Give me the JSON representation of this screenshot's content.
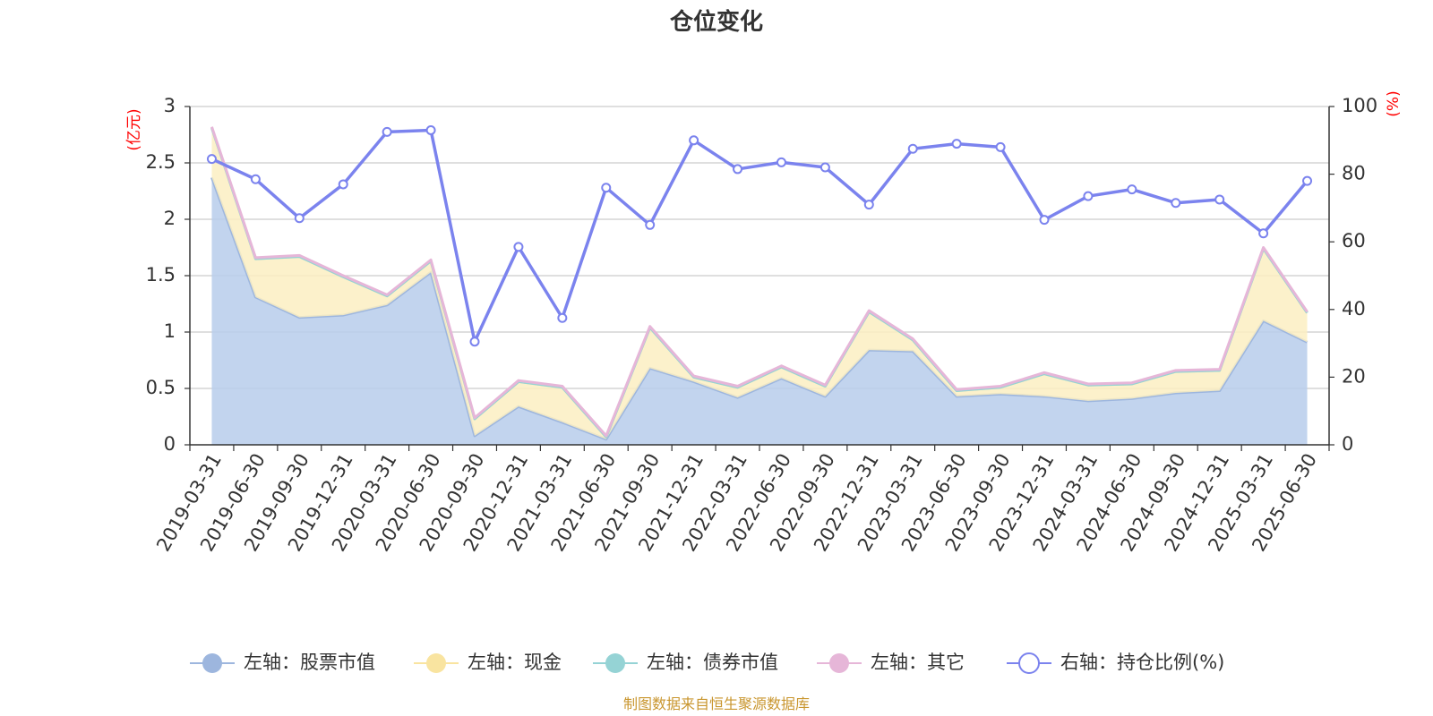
{
  "chart_data": {
    "type": "area",
    "title": "仓位变化",
    "left_unit": "(亿元)",
    "right_unit": "(%)",
    "categories": [
      "2019-03-31",
      "2019-06-30",
      "2019-09-30",
      "2019-12-31",
      "2020-03-31",
      "2020-06-30",
      "2020-09-30",
      "2020-12-31",
      "2021-03-31",
      "2021-06-30",
      "2021-09-30",
      "2021-12-31",
      "2022-03-31",
      "2022-06-30",
      "2022-09-30",
      "2022-12-31",
      "2023-03-31",
      "2023-06-30",
      "2023-09-30",
      "2023-12-31",
      "2024-03-31",
      "2024-06-30",
      "2024-09-30",
      "2024-12-31",
      "2025-03-31",
      "2025-06-30"
    ],
    "left_axis": {
      "min": 0,
      "max": 3,
      "ticks": [
        "0",
        "0.5",
        "1",
        "1.5",
        "2",
        "2.5",
        "3"
      ]
    },
    "right_axis": {
      "min": 0,
      "max": 100,
      "ticks": [
        "0",
        "20",
        "40",
        "60",
        "80",
        "100"
      ]
    },
    "grid": true,
    "legend_position": "bottom",
    "series": [
      {
        "name": "左轴：股票市值",
        "axis": "left",
        "kind": "area",
        "color": "#9db6de",
        "fill": "#b7cdeb",
        "values": [
          2.37,
          1.31,
          1.13,
          1.15,
          1.24,
          1.53,
          0.08,
          0.34,
          0.2,
          0.05,
          0.68,
          0.56,
          0.42,
          0.59,
          0.43,
          0.84,
          0.83,
          0.43,
          0.45,
          0.43,
          0.39,
          0.41,
          0.46,
          0.48,
          1.1,
          0.91
        ]
      },
      {
        "name": "左轴：现金",
        "axis": "left",
        "kind": "area",
        "color": "#f9e4a0",
        "fill": "#fbeec2",
        "values": [
          0.44,
          0.34,
          0.54,
          0.34,
          0.08,
          0.1,
          0.15,
          0.22,
          0.31,
          0.02,
          0.36,
          0.04,
          0.09,
          0.1,
          0.09,
          0.34,
          0.1,
          0.05,
          0.06,
          0.2,
          0.14,
          0.13,
          0.19,
          0.18,
          0.64,
          0.26
        ]
      },
      {
        "name": "左轴：债券市值",
        "axis": "left",
        "kind": "area",
        "color": "#95d3d5",
        "fill": "#b6e3e4",
        "values": [
          0,
          0,
          0,
          0,
          0,
          0,
          0,
          0,
          0,
          0,
          0,
          0,
          0,
          0,
          0,
          0,
          0,
          0,
          0,
          0,
          0,
          0,
          0,
          0,
          0,
          0
        ]
      },
      {
        "name": "左轴：其它",
        "axis": "left",
        "kind": "area",
        "color": "#e6b6d8",
        "fill": "#f1d5e8",
        "values": [
          0.01,
          0.01,
          0.01,
          0.01,
          0.01,
          0.01,
          0.01,
          0.01,
          0.01,
          0.01,
          0.01,
          0.01,
          0.01,
          0.01,
          0.01,
          0.01,
          0.01,
          0.01,
          0.01,
          0.01,
          0.01,
          0.01,
          0.01,
          0.01,
          0.01,
          0.01
        ]
      },
      {
        "name": "右轴：持仓比例(%)",
        "axis": "right",
        "kind": "line",
        "color": "#7b83ee",
        "values": [
          84.5,
          78.5,
          67,
          77,
          92.5,
          93,
          30.5,
          58.5,
          37.5,
          76,
          65,
          90,
          81.5,
          83.5,
          82,
          71,
          87.5,
          89,
          88,
          66.5,
          73.5,
          75.5,
          71.5,
          72.5,
          62.5,
          78
        ]
      }
    ]
  },
  "footer": {
    "source": "制图数据来自恒生聚源数据库"
  }
}
